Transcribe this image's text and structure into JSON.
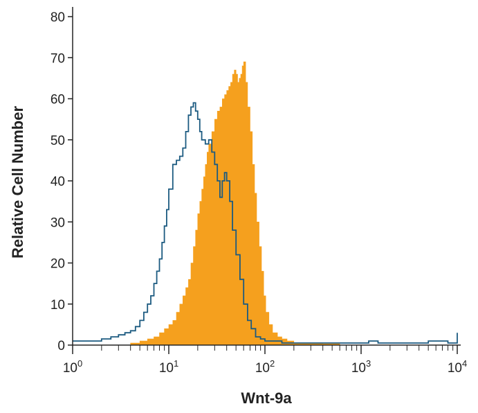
{
  "chart_data": {
    "type": "area",
    "xlabel": "Wnt-9a",
    "ylabel": "Relative Cell Number",
    "x_scale": "log",
    "xlim": [
      1,
      10000
    ],
    "ylim": [
      0,
      80
    ],
    "x_ticks": [
      {
        "value": 1,
        "base": "10",
        "exp": "0"
      },
      {
        "value": 10,
        "base": "10",
        "exp": "1"
      },
      {
        "value": 100,
        "base": "10",
        "exp": "2"
      },
      {
        "value": 1000,
        "base": "10",
        "exp": "3"
      },
      {
        "value": 10000,
        "base": "10",
        "exp": "4"
      }
    ],
    "y_ticks": [
      0,
      10,
      20,
      30,
      40,
      50,
      60,
      70,
      80
    ],
    "grid": false,
    "legend": "none",
    "series": [
      {
        "style": "filled",
        "color": "#F5A01E",
        "x": [
          1,
          2,
          3,
          4,
          5,
          6,
          7,
          8,
          9,
          10,
          11,
          12,
          13,
          14,
          15,
          16,
          17,
          18,
          19,
          20,
          21,
          22,
          23,
          24,
          25,
          26,
          28,
          30,
          32,
          34,
          36,
          38,
          40,
          42,
          44,
          46,
          48,
          50,
          52,
          54,
          56,
          58,
          60,
          63,
          66,
          70,
          74,
          78,
          82,
          87,
          92,
          97,
          102,
          110,
          120,
          135,
          150,
          170,
          200,
          250,
          300,
          400,
          600,
          1000,
          2000,
          5000,
          10000
        ],
        "values": [
          0,
          0,
          0,
          0.5,
          1,
          1.5,
          2,
          3,
          4,
          5,
          6,
          8,
          10,
          12,
          14,
          16,
          20,
          24,
          28,
          32,
          35,
          38,
          41,
          44,
          47,
          49,
          52,
          55,
          57,
          58,
          60,
          61,
          62,
          63,
          64,
          66,
          67,
          66,
          64,
          65,
          66,
          68,
          69,
          64,
          58,
          52,
          44,
          37,
          30,
          24,
          18,
          12,
          8,
          5,
          3,
          2,
          1.5,
          1,
          0.5,
          0.5,
          0.5,
          0.3,
          0,
          0,
          0,
          0,
          0
        ]
      },
      {
        "style": "outline",
        "color": "#1B5A80",
        "x": [
          1,
          1.5,
          2,
          2.5,
          3,
          3.5,
          4,
          4.5,
          5,
          5.5,
          6,
          6.5,
          7,
          7.5,
          8,
          8.5,
          9,
          9.5,
          10,
          11,
          12,
          13,
          14,
          15,
          16,
          17,
          18,
          19,
          20,
          21,
          22,
          24,
          26,
          28,
          30,
          32,
          34,
          36,
          38,
          40,
          43,
          46,
          50,
          55,
          60,
          66,
          72,
          80,
          90,
          100,
          120,
          150,
          200,
          300,
          500,
          1000,
          1200,
          1500,
          2000,
          3000,
          4000,
          5000,
          8000,
          10000
        ],
        "values": [
          1,
          1,
          1.5,
          2,
          2.5,
          3,
          3.5,
          4.5,
          6,
          8,
          10,
          12,
          15,
          18,
          21,
          25,
          29,
          33,
          38,
          44,
          45,
          46,
          48,
          52,
          56,
          58,
          59,
          57,
          55,
          52,
          50,
          49,
          50,
          47,
          44,
          40,
          36,
          40,
          42,
          40,
          35,
          28,
          22,
          16,
          10,
          6,
          4,
          2,
          1.5,
          1,
          1,
          0.5,
          0.5,
          0.5,
          0.5,
          0.5,
          1,
          0.5,
          0.5,
          0.5,
          0.5,
          1,
          0.5,
          3
        ]
      }
    ]
  }
}
